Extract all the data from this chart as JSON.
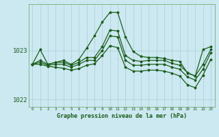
{
  "bg_color": "#cce8f0",
  "line_color": "#1a5c1a",
  "grid_color": "#aaccd8",
  "text_color": "#1a5c1a",
  "xlabel": "Graphe pression niveau de la mer (hPa)",
  "ylim": [
    1021.85,
    1023.95
  ],
  "xlim": [
    -0.5,
    23.5
  ],
  "yticks": [
    1022,
    1023
  ],
  "xticks": [
    0,
    1,
    2,
    3,
    4,
    5,
    6,
    7,
    8,
    9,
    10,
    11,
    12,
    13,
    14,
    15,
    16,
    17,
    18,
    19,
    20,
    21,
    22,
    23
  ],
  "hours": [
    0,
    1,
    2,
    3,
    4,
    5,
    6,
    7,
    8,
    9,
    10,
    11,
    12,
    13,
    14,
    15,
    16,
    17,
    18,
    19,
    20,
    21,
    22,
    23
  ],
  "spike": [
    1022.72,
    1023.02,
    1022.72,
    1022.76,
    1022.8,
    1022.72,
    1022.82,
    1023.05,
    1023.3,
    1023.58,
    1023.78,
    1023.78,
    1023.28,
    1022.98,
    1022.88,
    1022.86,
    1022.86,
    1022.84,
    1022.8,
    1022.78,
    1022.54,
    1022.48,
    1023.02,
    1023.08
  ],
  "mid_up": [
    1022.72,
    1022.8,
    1022.72,
    1022.76,
    1022.76,
    1022.7,
    1022.76,
    1022.86,
    1022.86,
    1023.08,
    1023.42,
    1023.4,
    1022.9,
    1022.8,
    1022.78,
    1022.8,
    1022.8,
    1022.8,
    1022.74,
    1022.7,
    1022.55,
    1022.48,
    1022.72,
    1023.02
  ],
  "mid_low": [
    1022.72,
    1022.76,
    1022.7,
    1022.72,
    1022.72,
    1022.66,
    1022.72,
    1022.8,
    1022.8,
    1023.0,
    1023.3,
    1023.28,
    1022.8,
    1022.7,
    1022.7,
    1022.72,
    1022.72,
    1022.72,
    1022.66,
    1022.62,
    1022.46,
    1022.4,
    1022.62,
    1022.96
  ],
  "bot": [
    1022.72,
    1022.72,
    1022.68,
    1022.66,
    1022.64,
    1022.6,
    1022.63,
    1022.7,
    1022.73,
    1022.9,
    1023.1,
    1023.06,
    1022.66,
    1022.58,
    1022.58,
    1022.6,
    1022.6,
    1022.58,
    1022.54,
    1022.48,
    1022.3,
    1022.24,
    1022.5,
    1022.82
  ]
}
